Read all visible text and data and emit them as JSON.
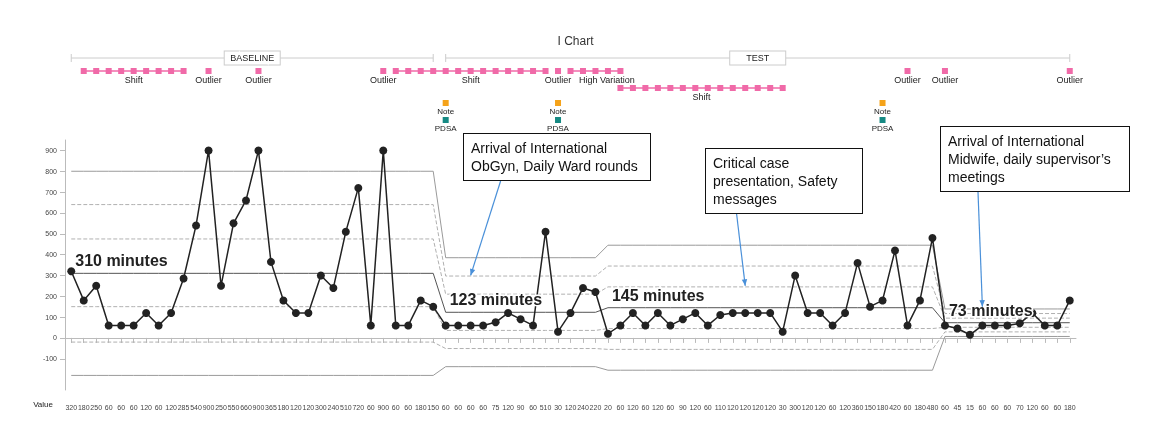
{
  "chart_data": {
    "type": "line",
    "title": "I Chart",
    "categories": [
      null,
      null,
      null,
      null,
      null,
      null,
      null,
      null,
      null,
      null,
      null,
      null,
      null,
      null,
      null,
      null,
      null,
      null,
      null,
      null,
      null,
      null,
      null,
      null,
      null,
      null,
      null,
      null,
      null,
      null,
      null,
      null,
      null,
      null,
      null,
      null,
      null,
      null,
      null,
      null,
      null,
      null,
      null,
      null,
      null,
      null,
      null,
      null,
      null,
      null,
      null,
      null,
      null,
      null,
      null,
      null,
      null,
      null,
      null,
      null,
      null,
      null,
      null,
      null,
      null,
      null,
      null,
      null,
      null,
      null,
      null,
      null,
      null,
      null,
      null,
      null,
      null,
      null,
      null,
      null,
      null
    ],
    "series": [
      {
        "color": "#222222",
        "marker": "circle",
        "line_style": "solid",
        "value_labels": [
          "320",
          "180",
          "250",
          "60",
          "60",
          "60",
          "120",
          "60",
          "120",
          "285",
          "540",
          "900",
          "250",
          "550",
          "660",
          "900",
          "365",
          "180",
          "120",
          "120",
          "300",
          "240",
          "510",
          "720",
          "60",
          "900",
          "60",
          "60",
          "180",
          "150",
          "60",
          "60",
          "60",
          "60",
          "75",
          "120",
          "90",
          "60",
          "510",
          "30",
          "120",
          "240",
          "220",
          "20",
          "60",
          "120",
          "60",
          "120",
          "60",
          "90",
          "120",
          "60",
          "110",
          "120",
          "120",
          "120",
          "120",
          "30",
          "300",
          "120",
          "120",
          "60",
          "120",
          "360",
          "150",
          "180",
          "420",
          "60",
          "180",
          "480",
          "60",
          "45",
          "15",
          "60",
          "60",
          "60",
          "70",
          "120",
          "60",
          "60",
          "180"
        ],
        "values": [
          320,
          180,
          250,
          60,
          60,
          60,
          120,
          60,
          120,
          285,
          540,
          900,
          250,
          550,
          660,
          900,
          365,
          180,
          120,
          120,
          300,
          240,
          510,
          720,
          60,
          900,
          60,
          60,
          180,
          150,
          60,
          60,
          60,
          60,
          75,
          120,
          90,
          60,
          510,
          30,
          120,
          240,
          220,
          20,
          60,
          120,
          60,
          120,
          60,
          90,
          120,
          60,
          110,
          120,
          120,
          120,
          120,
          30,
          300,
          120,
          120,
          60,
          120,
          360,
          150,
          180,
          420,
          60,
          180,
          480,
          60,
          45,
          15,
          60,
          60,
          60,
          70,
          120,
          60,
          60,
          180
        ]
      },
      {
        "color": "#9a9a9a",
        "marker": "none",
        "line_style": "solid",
        "values": [
          800,
          800,
          800,
          800,
          800,
          800,
          800,
          800,
          800,
          800,
          800,
          800,
          800,
          800,
          800,
          800,
          800,
          800,
          800,
          800,
          800,
          800,
          800,
          800,
          800,
          800,
          800,
          800,
          800,
          800,
          385,
          385,
          385,
          385,
          385,
          385,
          385,
          385,
          385,
          385,
          385,
          385,
          385,
          445,
          445,
          445,
          445,
          445,
          445,
          445,
          445,
          445,
          445,
          445,
          445,
          445,
          445,
          445,
          445,
          445,
          445,
          445,
          445,
          445,
          445,
          445,
          445,
          445,
          445,
          445,
          139,
          139,
          139,
          139,
          139,
          139,
          139,
          139,
          139,
          139,
          139
        ]
      },
      {
        "color": "#b0b0b0",
        "marker": "none",
        "line_style": "dashed",
        "values": [
          640,
          640,
          640,
          640,
          640,
          640,
          640,
          640,
          640,
          640,
          640,
          640,
          640,
          640,
          640,
          640,
          640,
          640,
          640,
          640,
          640,
          640,
          640,
          640,
          640,
          640,
          640,
          640,
          640,
          640,
          297,
          297,
          297,
          297,
          297,
          297,
          297,
          297,
          297,
          297,
          297,
          297,
          297,
          345,
          345,
          345,
          345,
          345,
          345,
          345,
          345,
          345,
          345,
          345,
          345,
          345,
          345,
          345,
          345,
          345,
          345,
          345,
          345,
          345,
          345,
          345,
          345,
          345,
          345,
          345,
          117,
          117,
          117,
          117,
          117,
          117,
          117,
          117,
          117,
          117,
          117
        ]
      },
      {
        "color": "#b0b0b0",
        "marker": "none",
        "line_style": "dashed",
        "values": [
          475,
          475,
          475,
          475,
          475,
          475,
          475,
          475,
          475,
          475,
          475,
          475,
          475,
          475,
          475,
          475,
          475,
          475,
          475,
          475,
          475,
          475,
          475,
          475,
          475,
          475,
          475,
          475,
          475,
          475,
          210,
          210,
          210,
          210,
          210,
          210,
          210,
          210,
          210,
          210,
          210,
          210,
          210,
          245,
          245,
          245,
          245,
          245,
          245,
          245,
          245,
          245,
          245,
          245,
          245,
          245,
          245,
          245,
          245,
          245,
          245,
          245,
          245,
          245,
          245,
          245,
          245,
          245,
          245,
          245,
          95,
          95,
          95,
          95,
          95,
          95,
          95,
          95,
          95,
          95,
          95
        ]
      },
      {
        "color": "#555555",
        "marker": "none",
        "line_style": "solid",
        "values": [
          310,
          310,
          310,
          310,
          310,
          310,
          310,
          310,
          310,
          310,
          310,
          310,
          310,
          310,
          310,
          310,
          310,
          310,
          310,
          310,
          310,
          310,
          310,
          310,
          310,
          310,
          310,
          310,
          310,
          310,
          123,
          123,
          123,
          123,
          123,
          123,
          123,
          123,
          123,
          123,
          123,
          123,
          123,
          145,
          145,
          145,
          145,
          145,
          145,
          145,
          145,
          145,
          145,
          145,
          145,
          145,
          145,
          145,
          145,
          145,
          145,
          145,
          145,
          145,
          145,
          145,
          145,
          145,
          145,
          145,
          73,
          73,
          73,
          73,
          73,
          73,
          73,
          73,
          73,
          73,
          73
        ]
      },
      {
        "color": "#b0b0b0",
        "marker": "none",
        "line_style": "dashed",
        "values": [
          150,
          150,
          150,
          150,
          150,
          150,
          150,
          150,
          150,
          150,
          150,
          150,
          150,
          150,
          150,
          150,
          150,
          150,
          150,
          150,
          150,
          150,
          150,
          150,
          150,
          150,
          150,
          150,
          150,
          150,
          36,
          36,
          36,
          36,
          36,
          36,
          36,
          36,
          36,
          36,
          36,
          36,
          36,
          45,
          45,
          45,
          45,
          45,
          45,
          45,
          45,
          45,
          45,
          45,
          45,
          45,
          45,
          45,
          45,
          45,
          45,
          45,
          45,
          45,
          45,
          45,
          45,
          45,
          45,
          45,
          51,
          51,
          51,
          51,
          51,
          51,
          51,
          51,
          51,
          51,
          51
        ]
      },
      {
        "color": "#b0b0b0",
        "marker": "none",
        "line_style": "dashed",
        "values": [
          -20,
          -20,
          -20,
          -20,
          -20,
          -20,
          -20,
          -20,
          -20,
          -20,
          -20,
          -20,
          -20,
          -20,
          -20,
          -20,
          -20,
          -20,
          -20,
          -20,
          -20,
          -20,
          -20,
          -20,
          -20,
          -20,
          -20,
          -20,
          -20,
          -20,
          -51,
          -51,
          -51,
          -51,
          -51,
          -51,
          -51,
          -51,
          -51,
          -51,
          -51,
          -51,
          -51,
          -55,
          -55,
          -55,
          -55,
          -55,
          -55,
          -55,
          -55,
          -55,
          -55,
          -55,
          -55,
          -55,
          -55,
          -55,
          -55,
          -55,
          -55,
          -55,
          -55,
          -55,
          -55,
          -55,
          -55,
          -55,
          -55,
          -55,
          29,
          29,
          29,
          29,
          29,
          29,
          29,
          29,
          29,
          29,
          29
        ]
      },
      {
        "color": "#9a9a9a",
        "marker": "none",
        "line_style": "solid",
        "values": [
          -180,
          -180,
          -180,
          -180,
          -180,
          -180,
          -180,
          -180,
          -180,
          -180,
          -180,
          -180,
          -180,
          -180,
          -180,
          -180,
          -180,
          -180,
          -180,
          -180,
          -180,
          -180,
          -180,
          -180,
          -180,
          -180,
          -180,
          -180,
          -180,
          -180,
          -138,
          -138,
          -138,
          -138,
          -138,
          -138,
          -138,
          -138,
          -138,
          -138,
          -138,
          -138,
          -138,
          -155,
          -155,
          -155,
          -155,
          -155,
          -155,
          -155,
          -155,
          -155,
          -155,
          -155,
          -155,
          -155,
          -155,
          -155,
          -155,
          -155,
          -155,
          -155,
          -155,
          -155,
          -155,
          -155,
          -155,
          -155,
          -155,
          -155,
          7,
          7,
          7,
          7,
          7,
          7,
          7,
          7,
          7,
          7,
          7
        ]
      }
    ],
    "ylim": [
      -250,
      950
    ],
    "yticks": [
      -100,
      0,
      100,
      200,
      300,
      400,
      500,
      600,
      700,
      800,
      900
    ],
    "annotations": [
      {
        "text": "310 minutes",
        "y": 310
      },
      {
        "text": "123 minutes",
        "y": 123
      },
      {
        "text": "145 minutes",
        "y": 145
      },
      {
        "text": "73 minutes",
        "y": 73
      },
      "Arrival of International ObGyn, Daily Ward rounds",
      "Critical case presentation, Safety messages",
      "Arrival of International Midwife, daily supervisor’s meetings",
      "BASELINE",
      "TEST",
      "Shift",
      "Outlier",
      "Outlier",
      "Outlier",
      "Shift",
      "Outlier",
      "High Variation",
      "Shift",
      "Outlier",
      "Outlier",
      "Outlier",
      "Note",
      "Note",
      "Note",
      "PDSA",
      "PDSA",
      "PDSA",
      "Value"
    ]
  }
}
